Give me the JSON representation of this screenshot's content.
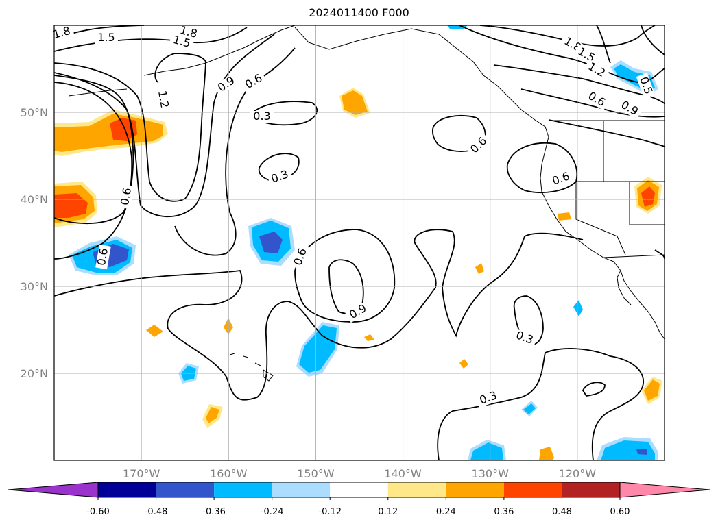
{
  "title": "2024011400 F000",
  "map": {
    "lon_range": [
      -180,
      -110
    ],
    "lat_range": [
      10,
      60
    ],
    "meridians": [
      -170,
      -160,
      -150,
      -140,
      -130,
      -120
    ],
    "parallels": [
      20,
      30,
      40,
      50
    ],
    "lon_labels": [
      "170°W",
      "160°W",
      "150°W",
      "140°W",
      "130°W",
      "120°W"
    ],
    "lat_labels": [
      "20°N",
      "30°N",
      "40°N",
      "50°N"
    ],
    "grid": true
  },
  "contour_labels": [
    "1.8",
    "1.5",
    "1.8",
    "1.5",
    "1.2",
    "0.9",
    "0.6",
    "0.3",
    "0.6",
    "0.3",
    "0.6",
    "0.6",
    "0.9",
    "0.3",
    "0.3",
    "0.6",
    "0.6",
    "1.8",
    "1.5",
    "1.2",
    "0.6",
    "0.9",
    "0.5"
  ],
  "colorbar": {
    "ticks": [
      "-0.60",
      "-0.48",
      "-0.36",
      "-0.24",
      "-0.12",
      "0.12",
      "0.24",
      "0.36",
      "0.48",
      "0.60"
    ],
    "colors": [
      "#9933cc",
      "#000099",
      "#3355cc",
      "#00bbff",
      "#aaddff",
      "#ffffff",
      "#ffe88a",
      "#ffa500",
      "#ff4400",
      "#b22222",
      "#ff88aa"
    ]
  }
}
